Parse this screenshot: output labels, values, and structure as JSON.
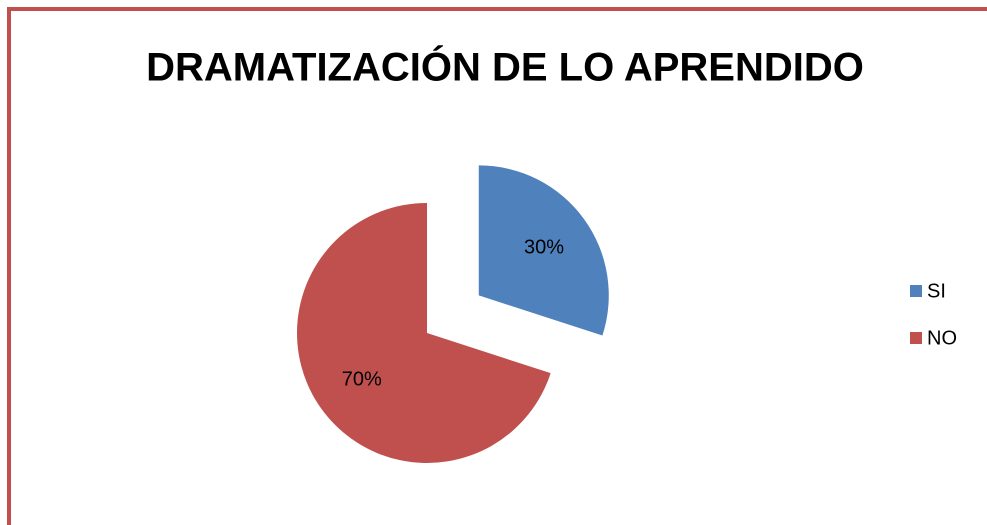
{
  "chart_data": {
    "type": "pie",
    "title": "DRAMATIZACIÓN DE LO APRENDIDO",
    "categories": [
      "SI",
      "NO"
    ],
    "values": [
      30,
      70
    ],
    "value_labels": [
      "30%",
      "70%"
    ],
    "colors": [
      "#4f81bd",
      "#c0504d"
    ],
    "legend": "right"
  }
}
